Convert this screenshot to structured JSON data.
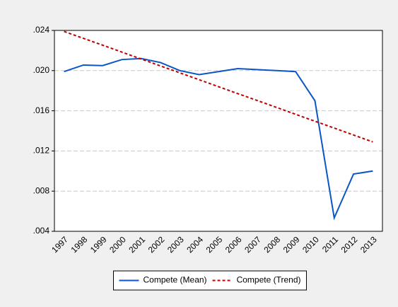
{
  "chart_data": {
    "type": "line",
    "categories": [
      "1997",
      "1998",
      "1999",
      "2000",
      "2001",
      "2002",
      "2003",
      "2004",
      "2005",
      "2006",
      "2007",
      "2008",
      "2009",
      "2010",
      "2011",
      "2012",
      "2013"
    ],
    "series": [
      {
        "name": "Compete (Mean)",
        "color": "#0a56c7",
        "dash": false,
        "values": [
          0.0199,
          0.02055,
          0.0205,
          0.0211,
          0.0212,
          0.0208,
          0.02,
          0.0196,
          0.0199,
          0.0202,
          0.0201,
          0.02,
          0.0199,
          0.017,
          0.00534,
          0.0097,
          0.01
        ]
      },
      {
        "name": "Compete (Trend)",
        "color": "#c00000",
        "dash": true,
        "values": [
          0.0239,
          0.02321,
          0.02253,
          0.02184,
          0.02115,
          0.02046,
          0.01978,
          0.01909,
          0.0184,
          0.01771,
          0.01703,
          0.01634,
          0.01565,
          0.01496,
          0.01428,
          0.01359,
          0.0129
        ]
      }
    ],
    "ylim": [
      0.004,
      0.024
    ],
    "yticks": [
      {
        "value": 0.004,
        "label": ".004"
      },
      {
        "value": 0.008,
        "label": ".008"
      },
      {
        "value": 0.012,
        "label": ".012"
      },
      {
        "value": 0.016,
        "label": ".016"
      },
      {
        "value": 0.02,
        "label": ".020"
      },
      {
        "value": 0.024,
        "label": ".024"
      }
    ],
    "grid": true,
    "legend": "bottom"
  }
}
